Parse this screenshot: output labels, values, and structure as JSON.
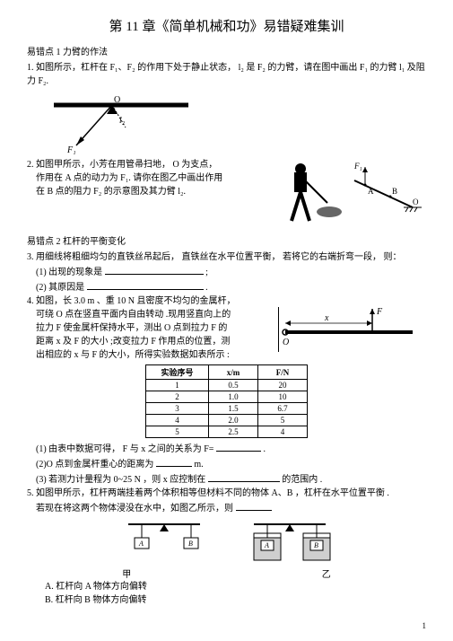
{
  "title": "第 11 章《简单机械和功》易错疑难集训",
  "section1": {
    "head": "易错点 1 力臂的作法"
  },
  "q1": {
    "text": "1. 如图所示，杠杆在 F₁、F₂ 的作用下处于静止状态， l₂ 是 F₂ 的力臂，请在图中画出 F₁ 的力臂 l₁ 及阻力 F₂."
  },
  "fig1": {
    "O": "O",
    "F1": "F₁",
    "l2": "l₂"
  },
  "q2": {
    "line1": "2. 如图甲所示，小芳在用管帚扫地，     O 为支点，",
    "line2": "作用在 A 点的动力为 F₁. 请你在图乙中画出作用",
    "line3": "在 B 点的阻力 F₂ 的示意图及其力臂 l₂."
  },
  "fig2": {
    "F1": "F₁",
    "A": "A",
    "B": "B",
    "O": "O"
  },
  "section2": {
    "head": "易错点 2 杠杆的平衡变化"
  },
  "q3": {
    "stem": "3. 用细线将粗细均匀的直铁丝吊起后，   直铁丝在水平位置平衡，  若将它的右端折弯一段，   则：",
    "a": "(1) 出现的现象是",
    "a_end": ";",
    "b": "(2) 其原因是",
    "b_end": "."
  },
  "q4": {
    "l1": "4. 如图，长 3.0 m 、重 10 N 且密度不均匀的金属杆，",
    "l2": "可绕 O 点在竖直平面内自由转动 .现用竖直向上的",
    "l3": "拉力 F 使金属杆保持水平，测出 O 点到拉力 F 的",
    "l4": "距离 x 及 F 的大小 ;改变拉力 F 作用点的位置，测",
    "l5": "出相应的 x 与 F 的大小，所得实验数据如表所示 :",
    "thead": [
      "实验序号",
      "x/m",
      "F/N"
    ],
    "rows": [
      [
        "1",
        "0.5",
        "20"
      ],
      [
        "2",
        "1.0",
        "10"
      ],
      [
        "3",
        "1.5",
        "6.7"
      ],
      [
        "4",
        "2.0",
        "5"
      ],
      [
        "5",
        "2.5",
        "4"
      ]
    ],
    "p1a": "(1)   由表中数据可得，  F 与 x 之间的关系为  F=",
    "p1b": ".",
    "p2a": "(2)O  点到金属杆重心的距离为",
    "p2b": "m.",
    "p3a": "(3) 若测力计量程为 0~25 N ，则 x 应控制在",
    "p3b": "的范围内 ."
  },
  "fig4": {
    "x": "x",
    "F": "F",
    "O": "O"
  },
  "q5": {
    "l1": "5. 如图甲所示，杠杆两端挂着两个体积相等但材料不同的物体     A、B ，杠杆在水平位置平衡 .",
    "l2": "若现在将这两个物体浸没在水中，如图乙所示，则",
    "captionA": "甲",
    "captionB": "乙",
    "optA": "A. 杠杆向 A 物体方向偏转",
    "optB": "B. 杠杆向 B 物体方向偏转"
  },
  "fig5": {
    "A": "A",
    "B": "B"
  },
  "pagenum": "1"
}
